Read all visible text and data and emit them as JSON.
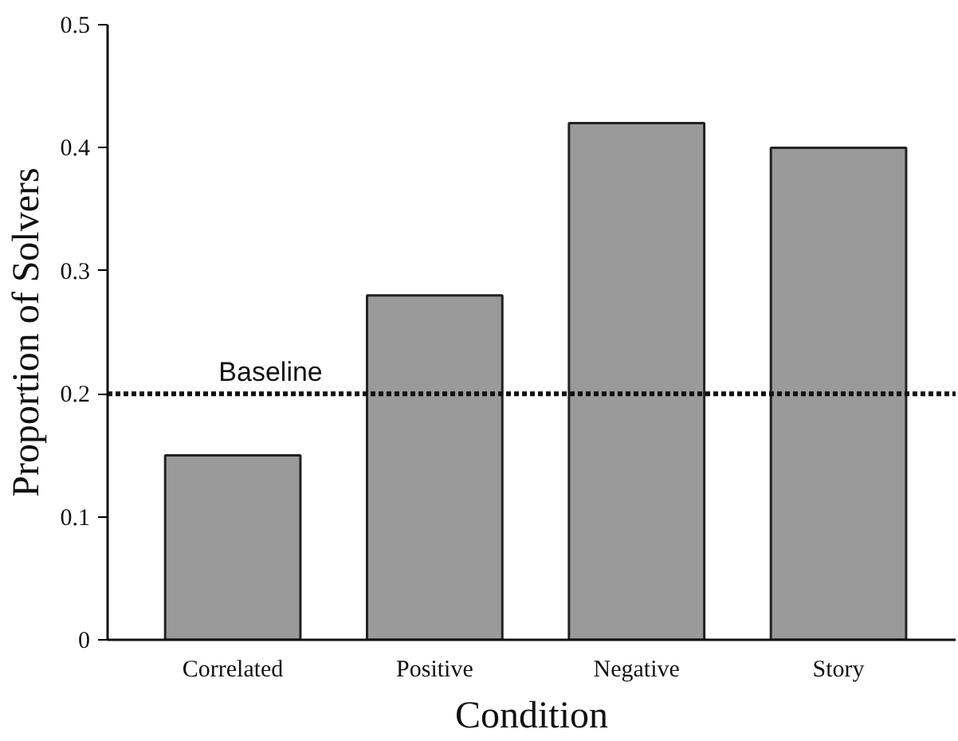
{
  "chart_data": {
    "type": "bar",
    "xlabel": "Condition",
    "ylabel": "Proportion of Solvers",
    "categories": [
      "Correlated",
      "Positive",
      "Negative",
      "Story"
    ],
    "values": [
      0.15,
      0.28,
      0.42,
      0.4
    ],
    "color": "#9a9a9a",
    "ylim": [
      0,
      0.5
    ],
    "yticks": [
      0,
      0.1,
      0.2,
      0.3,
      0.4,
      0.5
    ],
    "ref_lines": [
      {
        "axis": "y",
        "value": 0.2,
        "label": "Baseline",
        "color": "#111111",
        "line_style": "dotted"
      }
    ],
    "grid": false
  }
}
